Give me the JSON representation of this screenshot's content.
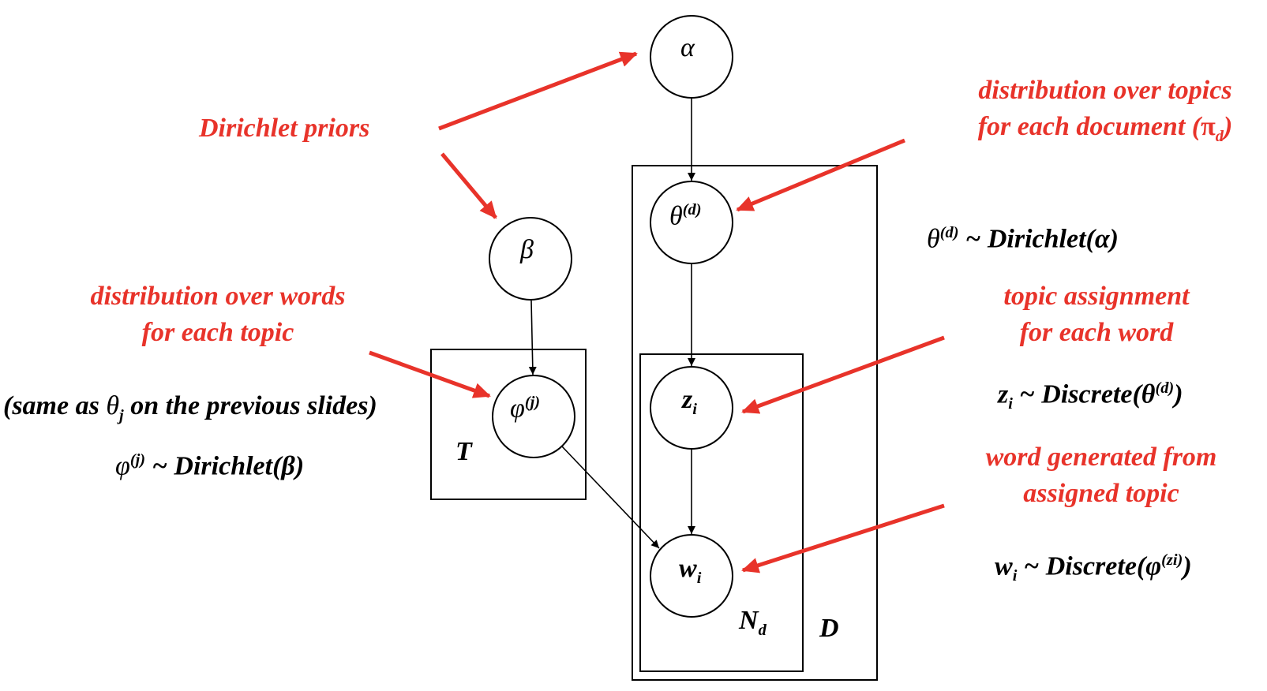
{
  "colors": {
    "annotation": "#e8332a",
    "ink": "#000000",
    "background": "#ffffff"
  },
  "nodes": {
    "alpha": {
      "symbol": "α"
    },
    "beta": {
      "symbol": "β"
    },
    "theta": {
      "symbol": "θ",
      "sup": "(d)"
    },
    "phi": {
      "symbol": "φ",
      "sup": "(j)"
    },
    "z": {
      "symbol": "z",
      "sub": "i"
    },
    "w": {
      "symbol": "w",
      "sub": "i"
    }
  },
  "plates": {
    "T": {
      "label": "T"
    },
    "D": {
      "label": "D"
    },
    "Nd": {
      "label": "N",
      "sub": "d"
    }
  },
  "annotations": {
    "dirichlet_priors": "Dirichlet priors",
    "topics_per_doc": {
      "line1": "distribution over topics",
      "line2_prefix": "for each document (",
      "line2_symbol": "π",
      "line2_sub": "d",
      "line2_suffix": ")"
    },
    "words_per_topic": {
      "line1": "distribution over words",
      "line2": "for each topic"
    },
    "topic_assignment": {
      "line1": "topic assignment",
      "line2": "for each word"
    },
    "word_generated": {
      "line1": "word generated from",
      "line2": "assigned topic"
    }
  },
  "equations": {
    "theta_dist": {
      "lhs": "θ",
      "sup": "(d)",
      "rhs": " ~ Dirichlet(α)"
    },
    "z_dist": {
      "lhs": "z",
      "sub": "i",
      "mid": " ~ Discrete(θ",
      "sup": "(d)",
      "end": ")"
    },
    "w_dist": {
      "lhs": "w",
      "sub": "i",
      "mid": " ~ Discrete(φ",
      "sup": "(zi)",
      "end": ")"
    },
    "phi_dist": {
      "lhs": "φ",
      "sup": "(j)",
      "rhs": " ~ Dirichlet(β)"
    },
    "same_as": {
      "prefix": "(same as ",
      "symbol": "θ",
      "sub": "j",
      "suffix": " on the previous slides)"
    }
  }
}
